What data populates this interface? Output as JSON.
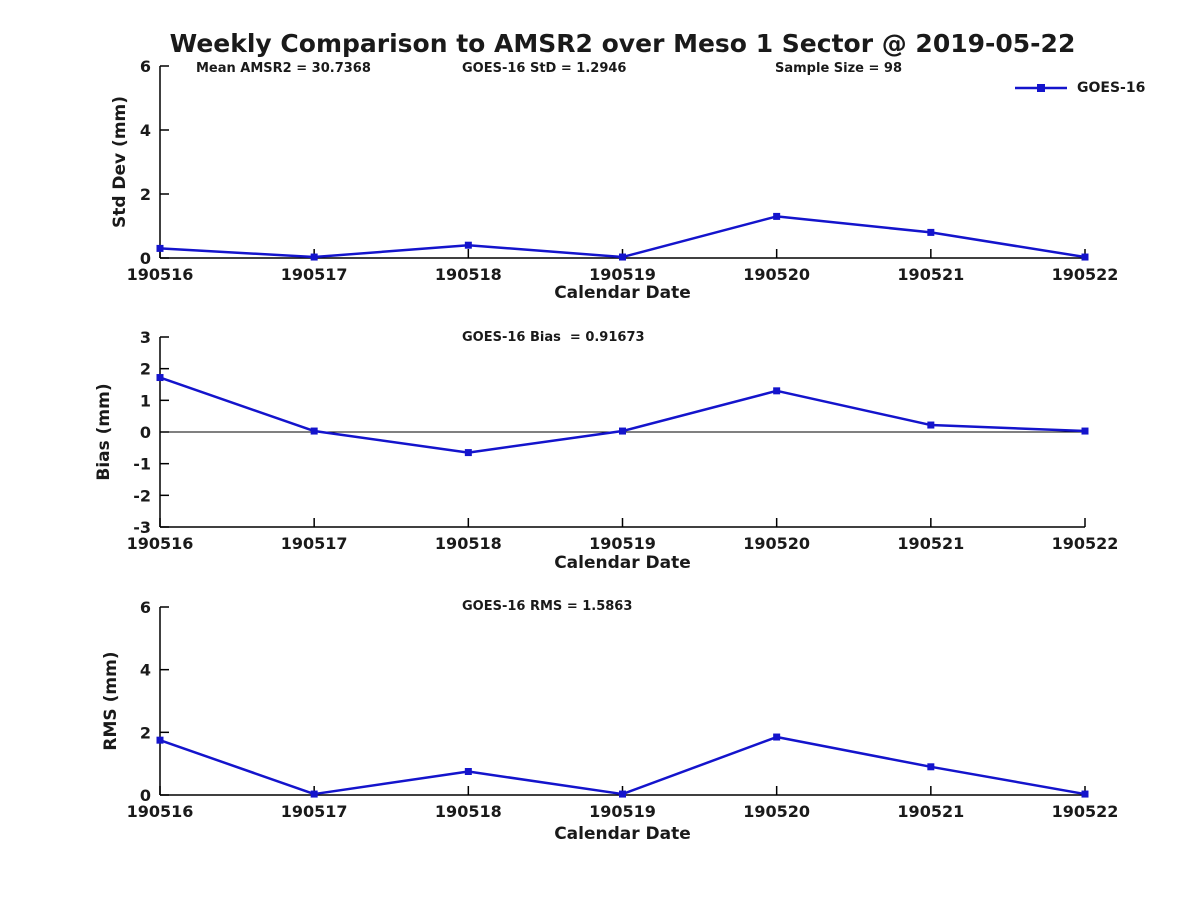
{
  "title": "Weekly Comparison to AMSR2 over Meso 1 Sector @ 2019-05-22",
  "annotations": {
    "mean_amsr2": "Mean AMSR2 = 30.7368",
    "goes16_std": "GOES-16 StD = 1.2946",
    "sample_size": "Sample Size = 98",
    "goes16_bias": "GOES-16 Bias  = 0.91673",
    "goes16_rms": "GOES-16 RMS = 1.5863"
  },
  "legend": {
    "label": "GOES-16"
  },
  "colors": {
    "line": "#1414cc",
    "axis": "#000000",
    "text": "#1a1a1a"
  },
  "chart_data": [
    {
      "type": "line",
      "panel": "std-dev",
      "ylabel": "Std Dev (mm)",
      "xlabel": "Calendar Date",
      "categories": [
        "190516",
        "190517",
        "190518",
        "190519",
        "190520",
        "190521",
        "190522"
      ],
      "series": [
        {
          "name": "GOES-16",
          "values": [
            0.3,
            0.03,
            0.4,
            0.03,
            1.3,
            0.8,
            0.03
          ]
        }
      ],
      "ylim": [
        0,
        6
      ],
      "yticks": [
        0,
        2,
        4,
        6
      ],
      "zero_line": false,
      "legend_position": "top-right",
      "grid": false
    },
    {
      "type": "line",
      "panel": "bias",
      "ylabel": "Bias (mm)",
      "xlabel": "Calendar Date",
      "categories": [
        "190516",
        "190517",
        "190518",
        "190519",
        "190520",
        "190521",
        "190522"
      ],
      "series": [
        {
          "name": "GOES-16",
          "values": [
            1.72,
            0.03,
            -0.65,
            0.03,
            1.3,
            0.22,
            0.03
          ]
        }
      ],
      "ylim": [
        -3,
        3
      ],
      "yticks": [
        -3,
        -2,
        -1,
        0,
        1,
        2,
        3
      ],
      "zero_line": true,
      "grid": false
    },
    {
      "type": "line",
      "panel": "rms",
      "ylabel": "RMS (mm)",
      "xlabel": "Calendar Date",
      "categories": [
        "190516",
        "190517",
        "190518",
        "190519",
        "190520",
        "190521",
        "190522"
      ],
      "series": [
        {
          "name": "GOES-16",
          "values": [
            1.75,
            0.03,
            0.75,
            0.03,
            1.85,
            0.9,
            0.03
          ]
        }
      ],
      "ylim": [
        0,
        6
      ],
      "yticks": [
        0,
        2,
        4,
        6
      ],
      "zero_line": false,
      "grid": false
    }
  ]
}
